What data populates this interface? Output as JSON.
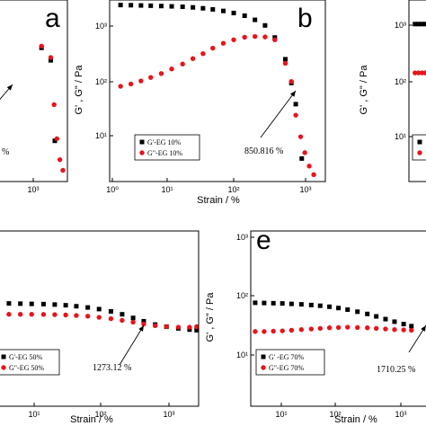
{
  "chart_data": [
    {
      "type": "scatter",
      "panel_label": "a",
      "xlabel": "",
      "ylabel": "",
      "x_ticks": [
        "10³"
      ],
      "y_ticks": [],
      "xscale": "log",
      "yscale": "log",
      "xlim": [
        50,
        2500
      ],
      "ylim": [
        1,
        2000
      ],
      "series": [
        {
          "name": "",
          "marker": "square",
          "color": "#000000",
          "x": [
            600,
            1000,
            1250
          ],
          "y": [
            270,
            160,
            5.5
          ]
        },
        {
          "name": "",
          "marker": "circle",
          "color": "#e8141b",
          "x": [
            600,
            1000,
            1200,
            1400,
            1650,
            1950
          ],
          "y": [
            290,
            180,
            25,
            6,
            2.5,
            1.6
          ]
        }
      ],
      "annotation": {
        "text": "%",
        "arrow_to": [
          880,
          240
        ]
      }
    },
    {
      "type": "scatter",
      "panel_label": "b",
      "xlabel": "Strain / %",
      "ylabel": "G' , G\" / Pa",
      "x_ticks": [
        "10⁰",
        "10¹",
        "10²",
        "10³"
      ],
      "y_ticks": [
        "10¹",
        "10²",
        "10³"
      ],
      "xscale": "log",
      "yscale": "log",
      "xlim": [
        1,
        3000
      ],
      "ylim": [
        2,
        2000
      ],
      "series": [
        {
          "name": "G'-EG 10%",
          "marker": "square",
          "color": "#000000",
          "x": [
            1.5,
            2.2,
            3.2,
            4.6,
            6.8,
            10,
            15,
            22,
            32,
            46,
            68,
            100,
            150,
            220,
            320,
            460,
            680,
            850,
            1000,
            1250
          ],
          "y": [
            1650,
            1640,
            1625,
            1610,
            1590,
            1570,
            1545,
            1510,
            1460,
            1400,
            1320,
            1220,
            1100,
            940,
            760,
            480,
            210,
            85,
            38,
            4.8
          ]
        },
        {
          "name": "G\"-EG 10%",
          "marker": "circle",
          "color": "#e8141b",
          "x": [
            1.5,
            2.2,
            3.2,
            4.6,
            6.8,
            10,
            15,
            22,
            32,
            46,
            68,
            100,
            150,
            220,
            320,
            460,
            680,
            850,
            1000,
            1200,
            1400,
            1650,
            1950
          ],
          "y": [
            75,
            82,
            92,
            105,
            122,
            145,
            175,
            215,
            260,
            320,
            385,
            440,
            485,
            500,
            490,
            440,
            180,
            90,
            25,
            11,
            6,
            3.6,
            2.6
          ]
        }
      ],
      "annotation": {
        "text": "850.816 %",
        "arrow_to": [
          880,
          90
        ]
      }
    },
    {
      "type": "scatter",
      "panel_label": "",
      "xlabel": "",
      "ylabel": "G' , G\" / Pa",
      "x_ticks": [],
      "y_ticks": [
        "10¹",
        "10²",
        "10³"
      ],
      "xscale": "log",
      "yscale": "log",
      "xlim": [
        1,
        100
      ],
      "ylim": [
        2,
        2000
      ],
      "series": [
        {
          "name": "",
          "marker": "square",
          "color": "#000000",
          "x": [
            2,
            3,
            4.5,
            6.5,
            9,
            13,
            18,
            25
          ],
          "y": [
            800,
            800,
            800,
            800,
            800,
            800,
            800,
            800
          ]
        },
        {
          "name": "",
          "marker": "circle",
          "color": "#e8141b",
          "x": [
            2,
            3,
            4.5,
            6.5,
            9,
            13,
            18,
            25
          ],
          "y": [
            125,
            125,
            125,
            125,
            125,
            125,
            125,
            125
          ]
        }
      ]
    },
    {
      "type": "scatter",
      "panel_label": "",
      "xlabel": "Strain / %",
      "ylabel": "",
      "x_ticks": [
        "10¹",
        "10²",
        "10³"
      ],
      "y_ticks": [],
      "xscale": "log",
      "yscale": "log",
      "xlim": [
        3,
        3000
      ],
      "ylim": [
        2,
        2000
      ],
      "series": [
        {
          "name": "G'-EG 50%",
          "marker": "square",
          "color": "#000000",
          "x": [
            4.6,
            6.8,
            10,
            15,
            22,
            32,
            46,
            68,
            100,
            150,
            220,
            320,
            460,
            680,
            1000,
            1500,
            2200,
            2800
          ],
          "y": [
            115,
            114,
            113,
            112,
            110,
            107,
            103,
            98,
            92,
            84,
            75,
            65,
            57,
            50,
            46,
            43,
            41,
            40
          ]
        },
        {
          "name": "G\"-EG 50%",
          "marker": "circle",
          "color": "#e8141b",
          "x": [
            4.6,
            6.8,
            10,
            15,
            22,
            32,
            46,
            68,
            100,
            150,
            220,
            320,
            460,
            680,
            1000,
            1500,
            2200,
            2800
          ],
          "y": [
            75,
            75,
            75,
            74.5,
            74,
            73,
            71.5,
            69.5,
            66.5,
            63,
            59,
            55,
            51,
            48,
            46,
            45,
            45,
            46
          ]
        }
      ],
      "annotation": {
        "text": "1273.12 %",
        "arrow_to": [
          1050,
          47
        ]
      }
    },
    {
      "type": "scatter",
      "panel_label": "e",
      "xlabel": "Strain / %",
      "ylabel": "G' , G\" / Pa",
      "x_ticks": [
        "10¹",
        "10²",
        "10³"
      ],
      "y_ticks": [
        "10¹",
        "10²",
        "10³"
      ],
      "xscale": "log",
      "yscale": "log",
      "xlim": [
        1.5,
        2500
      ],
      "ylim": [
        2,
        2000
      ],
      "series": [
        {
          "name": "G' -EG 70%",
          "marker": "square",
          "color": "#000000",
          "x": [
            1.8,
            2.6,
            3.8,
            5.5,
            8,
            12,
            18,
            26,
            38,
            55,
            80,
            120,
            180,
            260,
            380,
            550,
            800,
            1100
          ],
          "y": [
            118,
            117,
            116,
            115,
            113,
            111,
            108,
            105,
            101,
            96,
            90,
            83,
            76,
            69,
            62,
            56,
            51,
            47
          ]
        },
        {
          "name": "G\"-EG 70%",
          "marker": "circle",
          "color": "#e8141b",
          "x": [
            1.8,
            2.6,
            3.8,
            5.5,
            8,
            12,
            18,
            26,
            38,
            55,
            80,
            120,
            180,
            260,
            380,
            550,
            800,
            1100
          ],
          "y": [
            38,
            38,
            38.5,
            39,
            40,
            41,
            42,
            43,
            44,
            44.5,
            45,
            44.5,
            44,
            43,
            42,
            41,
            40.5,
            40
          ]
        }
      ],
      "annotation": {
        "text": "1710.25 %",
        "arrow_to": [
          1700,
          44
        ]
      }
    }
  ]
}
